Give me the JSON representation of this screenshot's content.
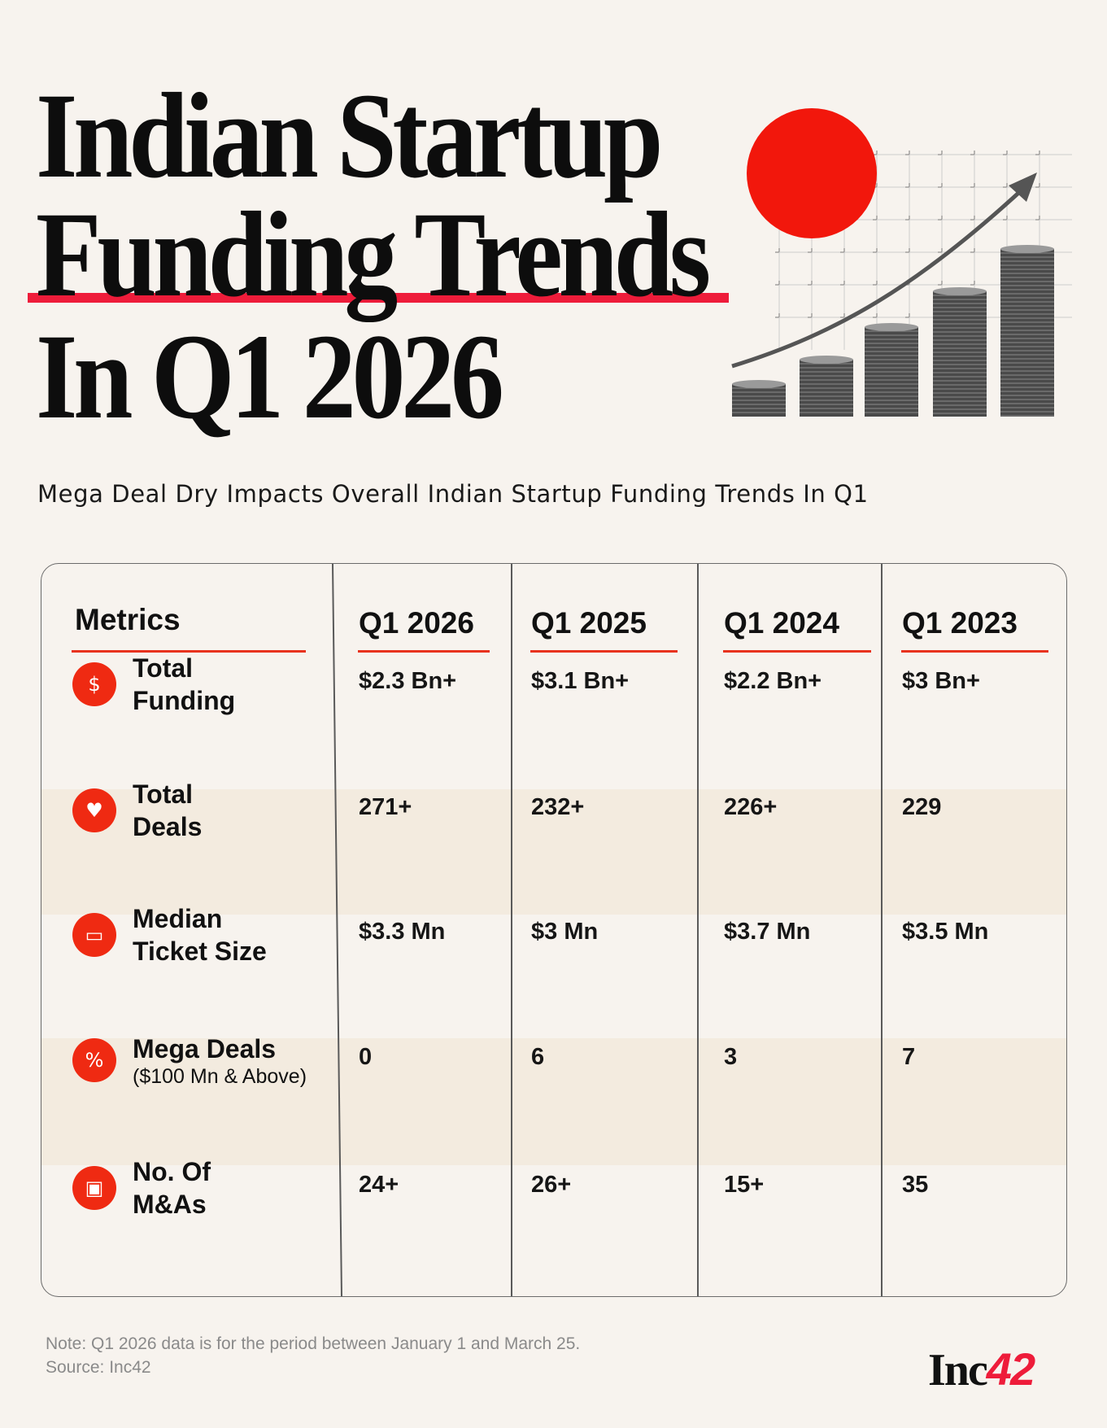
{
  "title": {
    "line1": "Indian Startup",
    "line2": "Funding Trends",
    "line3": "In Q1 2026"
  },
  "subtitle": "Mega Deal Dry Impacts Overall Indian Startup Funding Trends In Q1",
  "colors": {
    "accent": "#ee1c3a",
    "icon_bg": "#ef2a12",
    "background": "#f7f3ee",
    "shaded_row": "#f3ebdf"
  },
  "table": {
    "headers": [
      "Metrics",
      "Q1 2026",
      "Q1 2025",
      "Q1 2024",
      "Q1 2023"
    ],
    "rows": [
      {
        "icon": "money-bag-icon",
        "label1": "Total",
        "label2": "Funding",
        "sub": "",
        "values": [
          "$2.3 Bn+",
          "$3.1 Bn+",
          "$2.2 Bn+",
          "$3 Bn+"
        ]
      },
      {
        "icon": "handshake-icon",
        "label1": "Total",
        "label2": "Deals",
        "sub": "",
        "values": [
          "271+",
          "232+",
          "226+",
          "229"
        ]
      },
      {
        "icon": "ticket-icon",
        "label1": "Median",
        "label2": "Ticket Size",
        "sub": "",
        "values": [
          "$3.3 Mn",
          "$3 Mn",
          "$3.7 Mn",
          "$3.5 Mn"
        ]
      },
      {
        "icon": "discount-badge-icon",
        "label1": "Mega Deals",
        "label2": "",
        "sub": "($100 Mn & Above)",
        "values": [
          "0",
          "6",
          "3",
          "7"
        ]
      },
      {
        "icon": "puzzle-merge-icon",
        "label1": "No. Of",
        "label2": "M&As",
        "sub": "",
        "values": [
          "24+",
          "26+",
          "15+",
          "35"
        ]
      }
    ]
  },
  "footer": {
    "note": "Note: Q1 2026 data is for the period between January 1 and March 25.",
    "source": "Source: Inc42",
    "logo_text": "Inc",
    "logo_num": "42"
  }
}
